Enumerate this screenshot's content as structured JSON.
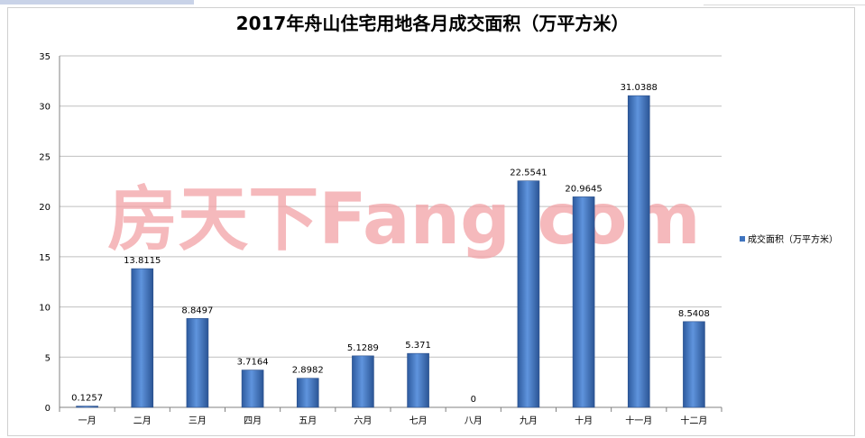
{
  "chart_data": {
    "type": "bar",
    "title": "2017年舟山住宅用地各月成交面积（万平方米）",
    "categories": [
      "一月",
      "二月",
      "三月",
      "四月",
      "五月",
      "六月",
      "七月",
      "八月",
      "九月",
      "十月",
      "十一月",
      "十二月"
    ],
    "series": [
      {
        "name": "成交面积（万平方米）",
        "values": [
          0.1257,
          13.8115,
          8.8497,
          3.7164,
          2.8982,
          5.1289,
          5.371,
          0,
          22.5541,
          20.9645,
          31.0388,
          8.5408
        ],
        "labels": [
          "0.1257",
          "13.8115",
          "8.8497",
          "3.7164",
          "2.8982",
          "5.1289",
          "5.371",
          "0",
          "22.5541",
          "20.9645",
          "31.0388",
          "8.5408"
        ]
      }
    ],
    "ylim": [
      0,
      35
    ],
    "yticks": [
      0,
      5,
      10,
      15,
      20,
      25,
      30,
      35
    ],
    "grid": true,
    "legend_position": "right",
    "bar_color": "#3f74bf"
  },
  "watermark": "房天下Fang.com"
}
